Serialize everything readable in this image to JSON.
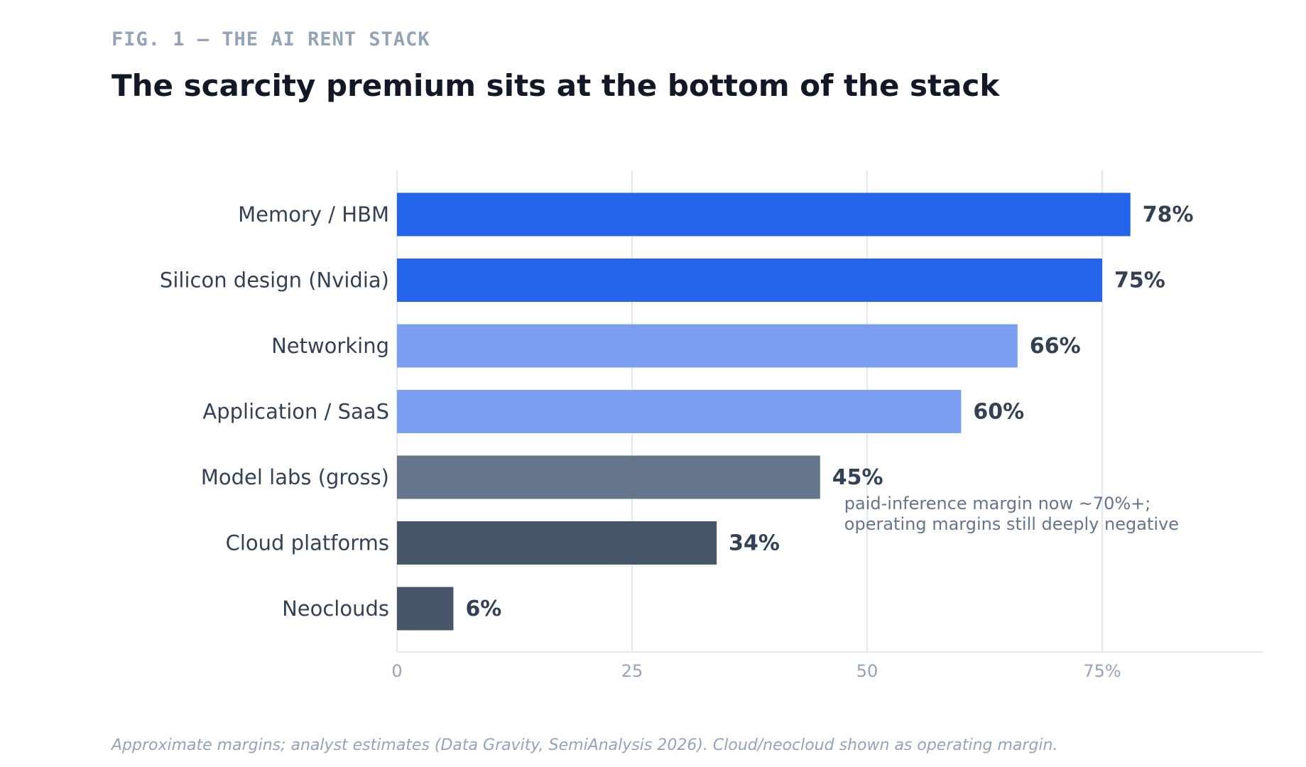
{
  "header": {
    "fig_label": "FIG. 1 — THE AI RENT STACK",
    "title": "The scarcity premium sits at the bottom of the stack"
  },
  "footnote": "Approximate margins; analyst estimates (Data Gravity, SemiAnalysis 2026). Cloud/neocloud shown as operating margin.",
  "colors": {
    "bright_blue": "#2563eb",
    "light_blue": "#7b9ef0",
    "slate": "#64748b",
    "dark_slate": "#475569",
    "label_text": "#334155",
    "axis_text": "#94a3b8",
    "grid": "#e2e8f0",
    "annotation_text": "#64748b"
  },
  "chart_data": {
    "type": "bar",
    "orientation": "horizontal",
    "categories": [
      "Memory / HBM",
      "Silicon design (Nvidia)",
      "Networking",
      "Application / SaaS",
      "Model labs (gross)",
      "Cloud platforms",
      "Neoclouds"
    ],
    "values": [
      78,
      75,
      66,
      60,
      45,
      34,
      6
    ],
    "value_labels": [
      "78%",
      "75%",
      "66%",
      "60%",
      "45%",
      "34%",
      "6%"
    ],
    "bar_colors": [
      "#2563eb",
      "#2563eb",
      "#7b9ef0",
      "#7b9ef0",
      "#64748b",
      "#475569",
      "#475569"
    ],
    "xlim": [
      0,
      92
    ],
    "xticks": [
      0,
      25,
      50,
      75
    ],
    "xtick_labels": [
      "0",
      "25",
      "50",
      "75%"
    ],
    "grid": true,
    "annotations": [
      {
        "category": "Model labs (gross)",
        "lines": [
          "paid-inference margin now ~70%+;",
          "operating margins still deeply negative"
        ]
      }
    ]
  }
}
